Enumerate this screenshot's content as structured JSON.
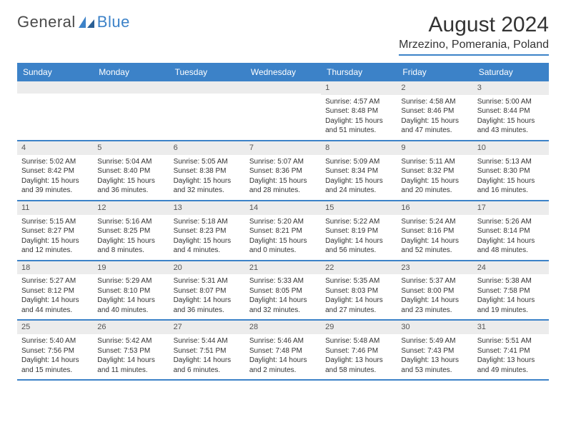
{
  "brand": {
    "part1": "General",
    "part2": "Blue"
  },
  "title": "August 2024",
  "location": "Mrzezino, Pomerania, Poland",
  "colors": {
    "accent": "#3c82c8",
    "daynum_bg": "#ececec",
    "text": "#333333",
    "bg": "#ffffff"
  },
  "dayNames": [
    "Sunday",
    "Monday",
    "Tuesday",
    "Wednesday",
    "Thursday",
    "Friday",
    "Saturday"
  ],
  "weeks": [
    [
      {
        "day": "",
        "sunrise": "",
        "sunset": "",
        "daylight": ""
      },
      {
        "day": "",
        "sunrise": "",
        "sunset": "",
        "daylight": ""
      },
      {
        "day": "",
        "sunrise": "",
        "sunset": "",
        "daylight": ""
      },
      {
        "day": "",
        "sunrise": "",
        "sunset": "",
        "daylight": ""
      },
      {
        "day": "1",
        "sunrise": "Sunrise: 4:57 AM",
        "sunset": "Sunset: 8:48 PM",
        "daylight": "Daylight: 15 hours and 51 minutes."
      },
      {
        "day": "2",
        "sunrise": "Sunrise: 4:58 AM",
        "sunset": "Sunset: 8:46 PM",
        "daylight": "Daylight: 15 hours and 47 minutes."
      },
      {
        "day": "3",
        "sunrise": "Sunrise: 5:00 AM",
        "sunset": "Sunset: 8:44 PM",
        "daylight": "Daylight: 15 hours and 43 minutes."
      }
    ],
    [
      {
        "day": "4",
        "sunrise": "Sunrise: 5:02 AM",
        "sunset": "Sunset: 8:42 PM",
        "daylight": "Daylight: 15 hours and 39 minutes."
      },
      {
        "day": "5",
        "sunrise": "Sunrise: 5:04 AM",
        "sunset": "Sunset: 8:40 PM",
        "daylight": "Daylight: 15 hours and 36 minutes."
      },
      {
        "day": "6",
        "sunrise": "Sunrise: 5:05 AM",
        "sunset": "Sunset: 8:38 PM",
        "daylight": "Daylight: 15 hours and 32 minutes."
      },
      {
        "day": "7",
        "sunrise": "Sunrise: 5:07 AM",
        "sunset": "Sunset: 8:36 PM",
        "daylight": "Daylight: 15 hours and 28 minutes."
      },
      {
        "day": "8",
        "sunrise": "Sunrise: 5:09 AM",
        "sunset": "Sunset: 8:34 PM",
        "daylight": "Daylight: 15 hours and 24 minutes."
      },
      {
        "day": "9",
        "sunrise": "Sunrise: 5:11 AM",
        "sunset": "Sunset: 8:32 PM",
        "daylight": "Daylight: 15 hours and 20 minutes."
      },
      {
        "day": "10",
        "sunrise": "Sunrise: 5:13 AM",
        "sunset": "Sunset: 8:30 PM",
        "daylight": "Daylight: 15 hours and 16 minutes."
      }
    ],
    [
      {
        "day": "11",
        "sunrise": "Sunrise: 5:15 AM",
        "sunset": "Sunset: 8:27 PM",
        "daylight": "Daylight: 15 hours and 12 minutes."
      },
      {
        "day": "12",
        "sunrise": "Sunrise: 5:16 AM",
        "sunset": "Sunset: 8:25 PM",
        "daylight": "Daylight: 15 hours and 8 minutes."
      },
      {
        "day": "13",
        "sunrise": "Sunrise: 5:18 AM",
        "sunset": "Sunset: 8:23 PM",
        "daylight": "Daylight: 15 hours and 4 minutes."
      },
      {
        "day": "14",
        "sunrise": "Sunrise: 5:20 AM",
        "sunset": "Sunset: 8:21 PM",
        "daylight": "Daylight: 15 hours and 0 minutes."
      },
      {
        "day": "15",
        "sunrise": "Sunrise: 5:22 AM",
        "sunset": "Sunset: 8:19 PM",
        "daylight": "Daylight: 14 hours and 56 minutes."
      },
      {
        "day": "16",
        "sunrise": "Sunrise: 5:24 AM",
        "sunset": "Sunset: 8:16 PM",
        "daylight": "Daylight: 14 hours and 52 minutes."
      },
      {
        "day": "17",
        "sunrise": "Sunrise: 5:26 AM",
        "sunset": "Sunset: 8:14 PM",
        "daylight": "Daylight: 14 hours and 48 minutes."
      }
    ],
    [
      {
        "day": "18",
        "sunrise": "Sunrise: 5:27 AM",
        "sunset": "Sunset: 8:12 PM",
        "daylight": "Daylight: 14 hours and 44 minutes."
      },
      {
        "day": "19",
        "sunrise": "Sunrise: 5:29 AM",
        "sunset": "Sunset: 8:10 PM",
        "daylight": "Daylight: 14 hours and 40 minutes."
      },
      {
        "day": "20",
        "sunrise": "Sunrise: 5:31 AM",
        "sunset": "Sunset: 8:07 PM",
        "daylight": "Daylight: 14 hours and 36 minutes."
      },
      {
        "day": "21",
        "sunrise": "Sunrise: 5:33 AM",
        "sunset": "Sunset: 8:05 PM",
        "daylight": "Daylight: 14 hours and 32 minutes."
      },
      {
        "day": "22",
        "sunrise": "Sunrise: 5:35 AM",
        "sunset": "Sunset: 8:03 PM",
        "daylight": "Daylight: 14 hours and 27 minutes."
      },
      {
        "day": "23",
        "sunrise": "Sunrise: 5:37 AM",
        "sunset": "Sunset: 8:00 PM",
        "daylight": "Daylight: 14 hours and 23 minutes."
      },
      {
        "day": "24",
        "sunrise": "Sunrise: 5:38 AM",
        "sunset": "Sunset: 7:58 PM",
        "daylight": "Daylight: 14 hours and 19 minutes."
      }
    ],
    [
      {
        "day": "25",
        "sunrise": "Sunrise: 5:40 AM",
        "sunset": "Sunset: 7:56 PM",
        "daylight": "Daylight: 14 hours and 15 minutes."
      },
      {
        "day": "26",
        "sunrise": "Sunrise: 5:42 AM",
        "sunset": "Sunset: 7:53 PM",
        "daylight": "Daylight: 14 hours and 11 minutes."
      },
      {
        "day": "27",
        "sunrise": "Sunrise: 5:44 AM",
        "sunset": "Sunset: 7:51 PM",
        "daylight": "Daylight: 14 hours and 6 minutes."
      },
      {
        "day": "28",
        "sunrise": "Sunrise: 5:46 AM",
        "sunset": "Sunset: 7:48 PM",
        "daylight": "Daylight: 14 hours and 2 minutes."
      },
      {
        "day": "29",
        "sunrise": "Sunrise: 5:48 AM",
        "sunset": "Sunset: 7:46 PM",
        "daylight": "Daylight: 13 hours and 58 minutes."
      },
      {
        "day": "30",
        "sunrise": "Sunrise: 5:49 AM",
        "sunset": "Sunset: 7:43 PM",
        "daylight": "Daylight: 13 hours and 53 minutes."
      },
      {
        "day": "31",
        "sunrise": "Sunrise: 5:51 AM",
        "sunset": "Sunset: 7:41 PM",
        "daylight": "Daylight: 13 hours and 49 minutes."
      }
    ]
  ]
}
